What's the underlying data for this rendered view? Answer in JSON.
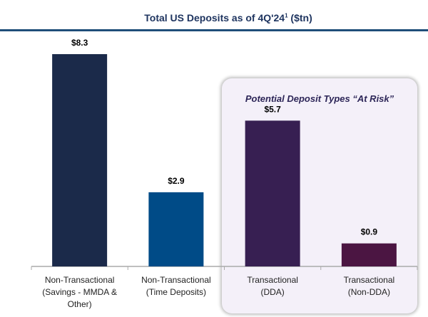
{
  "chart_data": {
    "type": "bar",
    "title": "Total US Deposits as of 4Q'24",
    "title_superscript": "1",
    "title_units": "($tn)",
    "categories": [
      [
        "Non-Transactional",
        "(Savings - MMDA &",
        "Other)"
      ],
      [
        "Non-Transactional",
        "(Time Deposits)"
      ],
      [
        "Transactional",
        "(DDA)"
      ],
      [
        "Transactional",
        "(Non-DDA)"
      ]
    ],
    "values": [
      8.3,
      2.9,
      5.7,
      0.9
    ],
    "data_labels": [
      "$8.3",
      "$2.9",
      "$5.7",
      "$0.9"
    ],
    "colors": [
      "#1b2a4a",
      "#004b87",
      "#371f52",
      "#4b1542"
    ],
    "annotation": "Potential Deposit Types “At Risk”",
    "xlabel": "",
    "ylabel": "",
    "ylim": [
      0,
      8.3
    ],
    "grid": false
  }
}
